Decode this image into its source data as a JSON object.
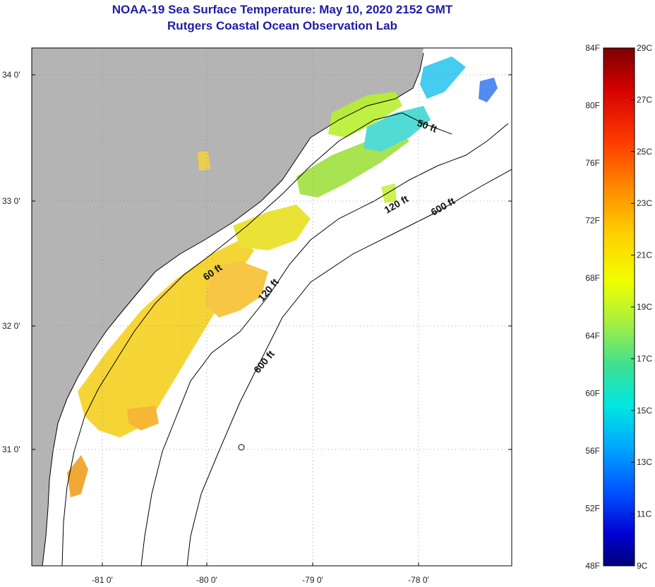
{
  "title": {
    "line1": "NOAA-19 Sea Surface Temperature:  May 10, 2020 2152 GMT",
    "line2": "Rutgers Coastal Ocean Observation Lab"
  },
  "map": {
    "lat_labels": [
      "34 0'",
      "33 0'",
      "32 0'",
      "31 0'"
    ],
    "lon_labels": [
      "-81 0'",
      "-80 0'",
      "-79 0'",
      "-78 0'"
    ],
    "isobaths": [
      {
        "label": "50 ft"
      },
      {
        "label": "60 ft"
      },
      {
        "label": "120 ft"
      },
      {
        "label": "120 ft"
      },
      {
        "label": "600 ft"
      },
      {
        "label": "600 ft"
      }
    ],
    "colors": {
      "land": "#b4b4b4",
      "water": "#ffffff",
      "title": "#1c1ca8"
    }
  },
  "colorbar": {
    "fahrenheit": [
      "84F",
      "80F",
      "76F",
      "72F",
      "68F",
      "64F",
      "60F",
      "56F",
      "52F",
      "48F"
    ],
    "celsius": [
      "29C",
      "27C",
      "25C",
      "23C",
      "21C",
      "19C",
      "17C",
      "15C",
      "13C",
      "11C",
      "9C"
    ]
  }
}
